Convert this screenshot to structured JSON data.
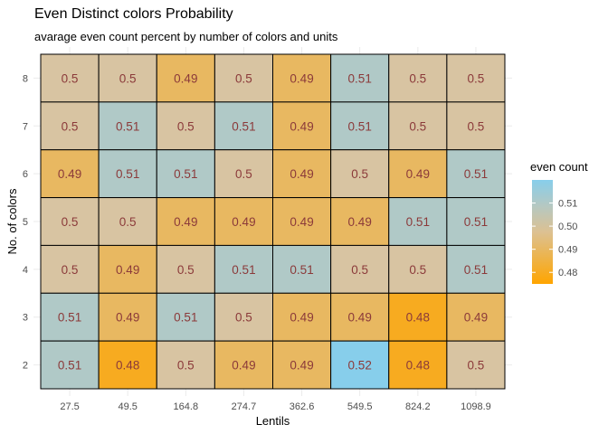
{
  "chart_data": {
    "type": "heatmap",
    "title": "Even Distinct colors Probability",
    "subtitle": "avarage even count percent by number of colors and units",
    "xlabel": "Lentils",
    "ylabel": "No. of colors",
    "x_categories": [
      "27.5",
      "49.5",
      "164.8",
      "274.7",
      "362.6",
      "549.5",
      "824.2",
      "1098.9"
    ],
    "y_categories": [
      "2",
      "3",
      "4",
      "5",
      "6",
      "7",
      "8"
    ],
    "rows": [
      {
        "y": "8",
        "values": [
          0.5,
          0.5,
          0.49,
          0.5,
          0.49,
          0.51,
          0.5,
          0.5
        ]
      },
      {
        "y": "7",
        "values": [
          0.5,
          0.51,
          0.5,
          0.51,
          0.49,
          0.51,
          0.5,
          0.5
        ]
      },
      {
        "y": "6",
        "values": [
          0.49,
          0.51,
          0.51,
          0.5,
          0.49,
          0.5,
          0.49,
          0.51
        ]
      },
      {
        "y": "5",
        "values": [
          0.5,
          0.5,
          0.49,
          0.49,
          0.49,
          0.49,
          0.51,
          0.51
        ]
      },
      {
        "y": "4",
        "values": [
          0.5,
          0.49,
          0.5,
          0.51,
          0.51,
          0.5,
          0.5,
          0.51
        ]
      },
      {
        "y": "3",
        "values": [
          0.51,
          0.49,
          0.51,
          0.5,
          0.49,
          0.49,
          0.48,
          0.49
        ]
      },
      {
        "y": "2",
        "values": [
          0.51,
          0.48,
          0.5,
          0.49,
          0.49,
          0.52,
          0.48,
          0.5
        ]
      }
    ],
    "legend": {
      "title": "even count",
      "ticks": [
        "0.51",
        "0.50",
        "0.49",
        "0.48"
      ],
      "tick_values": [
        0.51,
        0.5,
        0.49,
        0.48
      ],
      "range": [
        0.475,
        0.52
      ],
      "placement": "right"
    },
    "colors": {
      "low": "#ffa500",
      "mid": "#d8c4a2",
      "high": "#87ceeb",
      "label": "#8b3a3a",
      "border": "#000000",
      "grid": "#ebebeb"
    },
    "grid": true
  }
}
